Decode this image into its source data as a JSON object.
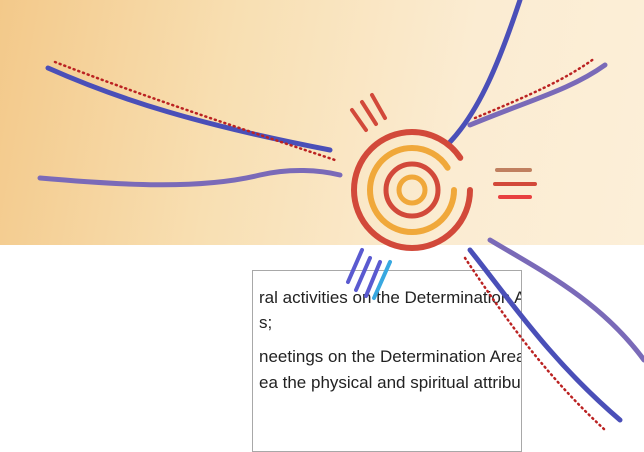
{
  "text_box": {
    "lines": [
      "ral activities on the Determination Area",
      "s;",
      "neetings on the Determination Area;",
      "ea the physical and spiritual attributes"
    ]
  }
}
